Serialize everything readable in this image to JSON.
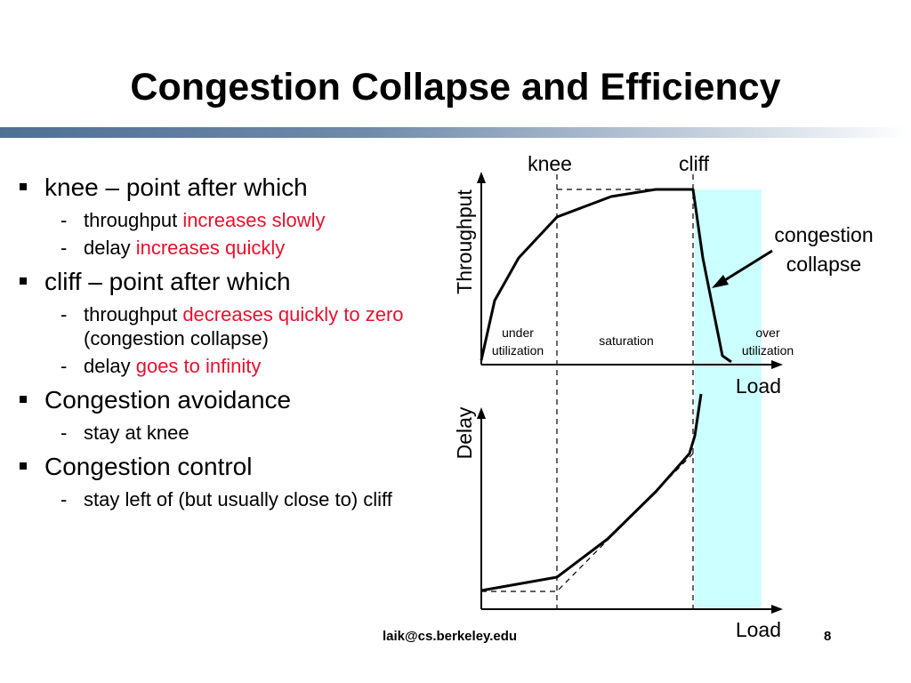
{
  "slide": {
    "title": "Congestion Collapse and Efficiency",
    "footer_email": "laik@cs.berkeley.edu",
    "slide_number": "8"
  },
  "bullets": [
    {
      "text": "knee – point after which",
      "subs": [
        {
          "parts": [
            {
              "text": "throughput ",
              "red": false
            },
            {
              "text": "increases slowly",
              "red": true
            }
          ]
        },
        {
          "parts": [
            {
              "text": "delay ",
              "red": false
            },
            {
              "text": "increases quickly",
              "red": true
            }
          ]
        }
      ]
    },
    {
      "text": "cliff – point after which",
      "subs": [
        {
          "parts": [
            {
              "text": "throughput ",
              "red": false
            },
            {
              "text": "decreases quickly to zero",
              "red": true
            },
            {
              "text": " (congestion collapse)",
              "red": false
            }
          ]
        },
        {
          "parts": [
            {
              "text": "delay ",
              "red": false
            },
            {
              "text": "goes to infinity",
              "red": true
            }
          ]
        }
      ]
    },
    {
      "text": "Congestion avoidance",
      "subs": [
        {
          "parts": [
            {
              "text": "stay at knee",
              "red": false
            }
          ]
        }
      ]
    },
    {
      "text": "Congestion control",
      "subs": [
        {
          "parts": [
            {
              "text": "stay left of (but usually close to) cliff",
              "red": false
            }
          ]
        }
      ]
    }
  ],
  "diagram": {
    "knee_label": "knee",
    "cliff_label": "cliff",
    "top_y_label": "Throughput",
    "top_x_label": "Load",
    "bottom_y_label": "Delay",
    "bottom_x_label": "Load",
    "collapse_label_line1": "congestion",
    "collapse_label_line2": "collapse",
    "region_under_1": "under",
    "region_under_2": "utilization",
    "region_saturation": "saturation",
    "region_over_1": "over",
    "region_over_2": "utilization",
    "colors": {
      "overload_region": "#ccffff",
      "red_text": "#e8112d"
    }
  }
}
